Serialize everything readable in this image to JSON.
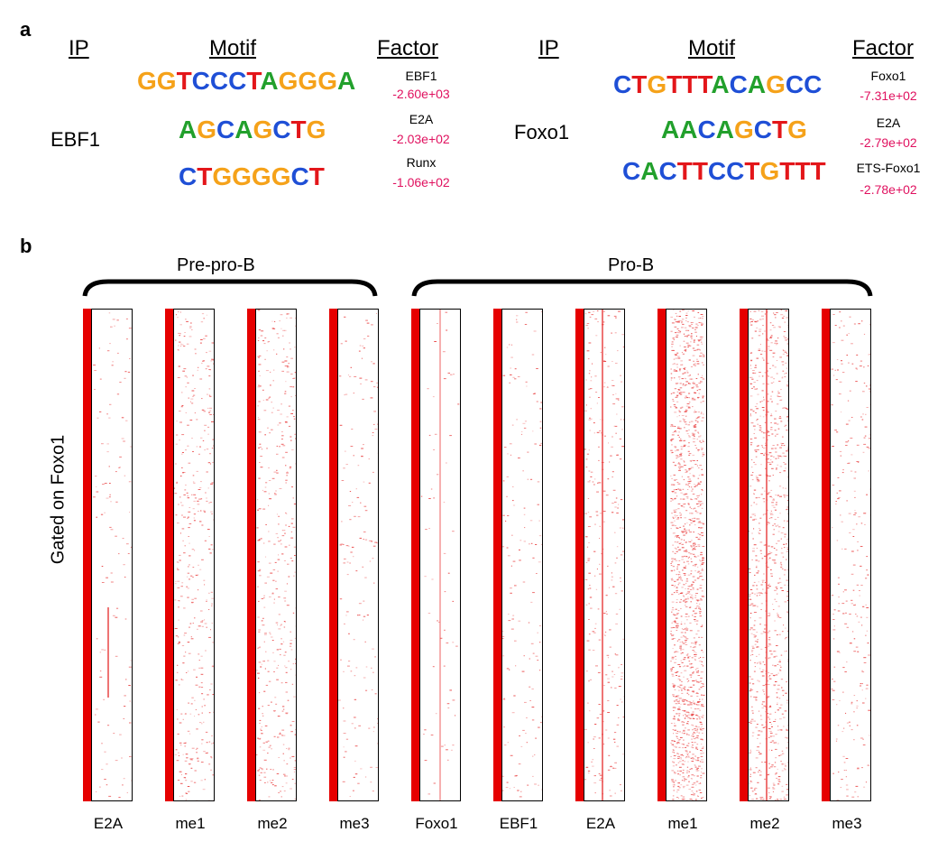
{
  "panel_a": {
    "label": "a",
    "headers": {
      "ip": "IP",
      "motif": "Motif",
      "factor": "Factor"
    },
    "groups": [
      {
        "ip": "EBF1",
        "rows": [
          {
            "motif": "GGTCCCTAGGGA",
            "factor": "EBF1",
            "score": "-2.60e+03"
          },
          {
            "motif": "AGCAGCTG",
            "factor": "E2A",
            "score": "-2.03e+02"
          },
          {
            "motif": "CTGGGGCT",
            "factor": "Runx",
            "score": "-1.06e+02"
          }
        ]
      },
      {
        "ip": "Foxo1",
        "rows": [
          {
            "motif": "CTGTTTACAGCC",
            "factor": "Foxo1",
            "score": "-7.31e+02"
          },
          {
            "motif": "AACAGCTG",
            "factor": "E2A",
            "score": "-2.79e+02"
          },
          {
            "motif": "CACTTCCTGTTT",
            "factor": "ETS-Foxo1",
            "score": "-2.78e+02"
          }
        ]
      }
    ],
    "base_colors": {
      "A": "#22a02c",
      "C": "#1f4fd6",
      "G": "#f5a21a",
      "T": "#e3161a"
    }
  },
  "panel_b": {
    "label": "b",
    "y_label": "Gated on Foxo1",
    "groups": [
      {
        "name": "Pre-pro-B",
        "lanes": [
          "E2A",
          "me1",
          "me2",
          "me3"
        ]
      },
      {
        "name": "Pro-B",
        "lanes": [
          "Foxo1",
          "EBF1",
          "E2A",
          "me1",
          "me2",
          "me3"
        ]
      }
    ],
    "colors": {
      "bar": "#e60000",
      "signal": "#e83a3a"
    }
  }
}
